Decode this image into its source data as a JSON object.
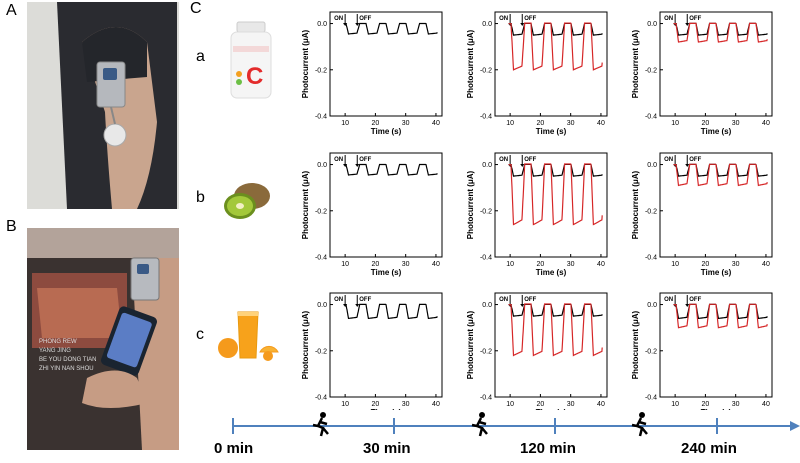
{
  "figure": {
    "panel_labels": [
      "A",
      "B",
      "C"
    ],
    "row_labels": [
      "a",
      "b",
      "c"
    ],
    "on_label": "ON",
    "off_label": "OFF",
    "timeline": {
      "labels": [
        "0 min",
        "30 min",
        "120 min",
        "240 min"
      ],
      "runner_icon": "running-person-icon",
      "line_color": "#4f81bd"
    },
    "photo_b_shirt_text": [
      "PHONG REW",
      "YANG JING",
      "BE YOU DONG TIAN",
      "ZHI YIN NAN SHOU"
    ],
    "bottle_label": "C",
    "colors": {
      "black_trace": "#000000",
      "red_trace": "#d62728"
    }
  },
  "chart_data": [
    {
      "type": "line",
      "row": "a",
      "column": "30 min",
      "xlabel": "Time (s)",
      "ylabel": "Photocurrent (μA)",
      "xlim": [
        5,
        42
      ],
      "ylim": [
        -0.4,
        0.05
      ],
      "xticks": [
        10,
        20,
        30,
        40
      ],
      "yticks": [
        0.0,
        -0.2,
        -0.4
      ],
      "ytick_labels": [
        "0.0",
        "-0.2",
        "-0.4"
      ],
      "series": [
        {
          "color": "#000000",
          "baseline": 0.0,
          "low": -0.045,
          "cycles": 5
        }
      ]
    },
    {
      "type": "line",
      "row": "a",
      "column": "120 min",
      "xlabel": "Time (s)",
      "ylabel": "Photocurrent (μA)",
      "xlim": [
        5,
        42
      ],
      "ylim": [
        -0.4,
        0.05
      ],
      "xticks": [
        10,
        20,
        30,
        40
      ],
      "yticks": [
        0.0,
        -0.2,
        -0.4
      ],
      "ytick_labels": [
        "0.0",
        "-0.2",
        "-0.4"
      ],
      "series": [
        {
          "color": "#000000",
          "baseline": 0.0,
          "low": -0.05,
          "cycles": 5
        },
        {
          "color": "#d62728",
          "baseline": 0.0,
          "low": -0.2,
          "cycles": 5
        }
      ]
    },
    {
      "type": "line",
      "row": "a",
      "column": "240 min",
      "xlabel": "Time (s)",
      "ylabel": "Photocurrent (μA)",
      "xlim": [
        5,
        42
      ],
      "ylim": [
        -0.4,
        0.05
      ],
      "xticks": [
        10,
        20,
        30,
        40
      ],
      "yticks": [
        0.0,
        -0.2,
        -0.4
      ],
      "ytick_labels": [
        "0.0",
        "-0.2",
        "-0.4"
      ],
      "series": [
        {
          "color": "#000000",
          "baseline": 0.0,
          "low": -0.05,
          "cycles": 5
        },
        {
          "color": "#d62728",
          "baseline": 0.0,
          "low": -0.08,
          "cycles": 5
        }
      ]
    },
    {
      "type": "line",
      "row": "b",
      "column": "30 min",
      "xlabel": "Time (s)",
      "ylabel": "Photocurrent (μA)",
      "xlim": [
        5,
        42
      ],
      "ylim": [
        -0.4,
        0.05
      ],
      "xticks": [
        10,
        20,
        30,
        40
      ],
      "yticks": [
        0.0,
        -0.2,
        -0.4
      ],
      "ytick_labels": [
        "0.0",
        "-0.2",
        "-0.4"
      ],
      "series": [
        {
          "color": "#000000",
          "baseline": 0.0,
          "low": -0.045,
          "cycles": 5
        }
      ]
    },
    {
      "type": "line",
      "row": "b",
      "column": "120 min",
      "xlabel": "Time (s)",
      "ylabel": "Photocurrent (μA)",
      "xlim": [
        5,
        42
      ],
      "ylim": [
        -0.4,
        0.05
      ],
      "xticks": [
        10,
        20,
        30,
        40
      ],
      "yticks": [
        0.0,
        -0.2,
        -0.4
      ],
      "ytick_labels": [
        "0.0",
        "-0.2",
        "-0.4"
      ],
      "series": [
        {
          "color": "#000000",
          "baseline": 0.0,
          "low": -0.05,
          "cycles": 5
        },
        {
          "color": "#d62728",
          "baseline": 0.0,
          "low": -0.26,
          "cycles": 5
        }
      ]
    },
    {
      "type": "line",
      "row": "b",
      "column": "240 min",
      "xlabel": "Time (s)",
      "ylabel": "Photocurrent (μA)",
      "xlim": [
        5,
        42
      ],
      "ylim": [
        -0.4,
        0.05
      ],
      "xticks": [
        10,
        20,
        30,
        40
      ],
      "yticks": [
        0.0,
        -0.2,
        -0.4
      ],
      "ytick_labels": [
        "0.0",
        "-0.2",
        "-0.4"
      ],
      "series": [
        {
          "color": "#000000",
          "baseline": 0.0,
          "low": -0.05,
          "cycles": 5
        },
        {
          "color": "#d62728",
          "baseline": 0.0,
          "low": -0.09,
          "cycles": 5
        }
      ]
    },
    {
      "type": "line",
      "row": "c",
      "column": "30 min",
      "xlabel": "Time (s)",
      "ylabel": "Photocurrent (μA)",
      "xlim": [
        5,
        42
      ],
      "ylim": [
        -0.4,
        0.05
      ],
      "xticks": [
        10,
        20,
        30,
        40
      ],
      "yticks": [
        0.0,
        -0.2,
        -0.4
      ],
      "ytick_labels": [
        "0.0",
        "-0.2",
        "-0.4"
      ],
      "series": [
        {
          "color": "#000000",
          "baseline": 0.0,
          "low": -0.06,
          "cycles": 5
        }
      ]
    },
    {
      "type": "line",
      "row": "c",
      "column": "120 min",
      "xlabel": "Time (s)",
      "ylabel": "Photocurrent (μA)",
      "xlim": [
        5,
        42
      ],
      "ylim": [
        -0.4,
        0.05
      ],
      "xticks": [
        10,
        20,
        30,
        40
      ],
      "yticks": [
        0.0,
        -0.2,
        -0.4
      ],
      "ytick_labels": [
        "0.0",
        "-0.2",
        "-0.4"
      ],
      "series": [
        {
          "color": "#000000",
          "baseline": 0.0,
          "low": -0.05,
          "cycles": 5
        },
        {
          "color": "#d62728",
          "baseline": 0.0,
          "low": -0.22,
          "cycles": 5
        }
      ]
    },
    {
      "type": "line",
      "row": "c",
      "column": "240 min",
      "xlabel": "Time (s)",
      "ylabel": "Photocurrent (μA)",
      "xlim": [
        5,
        42
      ],
      "ylim": [
        -0.4,
        0.05
      ],
      "xticks": [
        10,
        20,
        30,
        40
      ],
      "yticks": [
        0.0,
        -0.2,
        -0.4
      ],
      "ytick_labels": [
        "0.0",
        "-0.2",
        "-0.4"
      ],
      "series": [
        {
          "color": "#000000",
          "baseline": 0.0,
          "low": -0.06,
          "cycles": 5
        },
        {
          "color": "#d62728",
          "baseline": 0.0,
          "low": -0.1,
          "cycles": 5
        }
      ]
    }
  ]
}
